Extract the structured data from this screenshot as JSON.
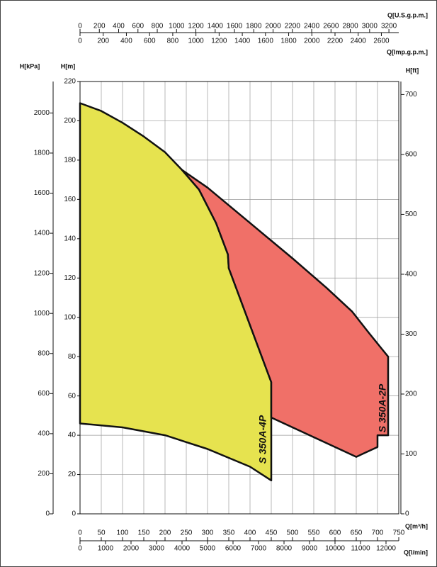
{
  "chart_data": {
    "type": "area",
    "xlabel": "Q[m³/h]",
    "ylabel": "H[m]",
    "xlim": [
      0,
      750
    ],
    "xticks": [
      0,
      50,
      100,
      150,
      200,
      250,
      300,
      350,
      400,
      450,
      500,
      550,
      600,
      650,
      700,
      750
    ],
    "ylim": [
      0,
      220
    ],
    "yticks": [
      0,
      20,
      40,
      60,
      80,
      100,
      120,
      140,
      160,
      180,
      200,
      220
    ],
    "grid": true,
    "secondary_axes": [
      {
        "side": "left",
        "label": "H[kPa]",
        "lim": [
          0,
          2157
        ],
        "ticks": [
          0,
          200,
          400,
          600,
          800,
          1000,
          1200,
          1400,
          1600,
          1800,
          2000
        ]
      },
      {
        "side": "right",
        "label": "H[ft]",
        "lim": [
          0,
          721.8
        ],
        "ticks": [
          0,
          100,
          200,
          300,
          400,
          500,
          600,
          700
        ]
      },
      {
        "side": "top-upper",
        "label": "Q[U.S.g.p.m.]",
        "lim": [
          0,
          3302
        ],
        "ticks": [
          0,
          200,
          400,
          600,
          800,
          1000,
          1200,
          1400,
          1600,
          1800,
          2000,
          2200,
          2400,
          2600,
          2800,
          3000,
          3200
        ]
      },
      {
        "side": "top-lower",
        "label": "Q[Imp.g.p.m.]",
        "lim": [
          0,
          2750
        ],
        "ticks": [
          0,
          200,
          400,
          600,
          800,
          1000,
          1200,
          1400,
          1600,
          1800,
          2000,
          2200,
          2400,
          2600
        ]
      },
      {
        "side": "bottom-lower",
        "label": "Q[l/min]",
        "lim": [
          0,
          12500
        ],
        "ticks": [
          0,
          1000,
          2000,
          3000,
          4000,
          5000,
          6000,
          7000,
          8000,
          9000,
          10000,
          11000,
          12000
        ]
      }
    ],
    "series": [
      {
        "name": "S 350A-4P",
        "color": "#e6e34f",
        "x": [
          0,
          50,
          100,
          150,
          200,
          240,
          280,
          320,
          348,
          350,
          400,
          450,
          450,
          400,
          300,
          200,
          100,
          0
        ],
        "y": [
          209,
          205,
          199,
          192,
          184,
          175,
          165,
          148,
          132,
          125,
          96,
          67,
          17,
          24,
          33,
          40,
          44,
          46
        ]
      },
      {
        "name": "S 350A-2P",
        "color": "#f07068",
        "x": [
          240,
          300,
          400,
          500,
          580,
          640,
          680,
          710,
          725,
          725,
          700,
          700,
          650,
          450,
          450,
          400,
          350,
          348,
          320,
          280
        ],
        "y": [
          175,
          166,
          148,
          130,
          115,
          103,
          92,
          84,
          80,
          40,
          40,
          34,
          29,
          49,
          67,
          96,
          125,
          132,
          148,
          165
        ]
      }
    ]
  }
}
